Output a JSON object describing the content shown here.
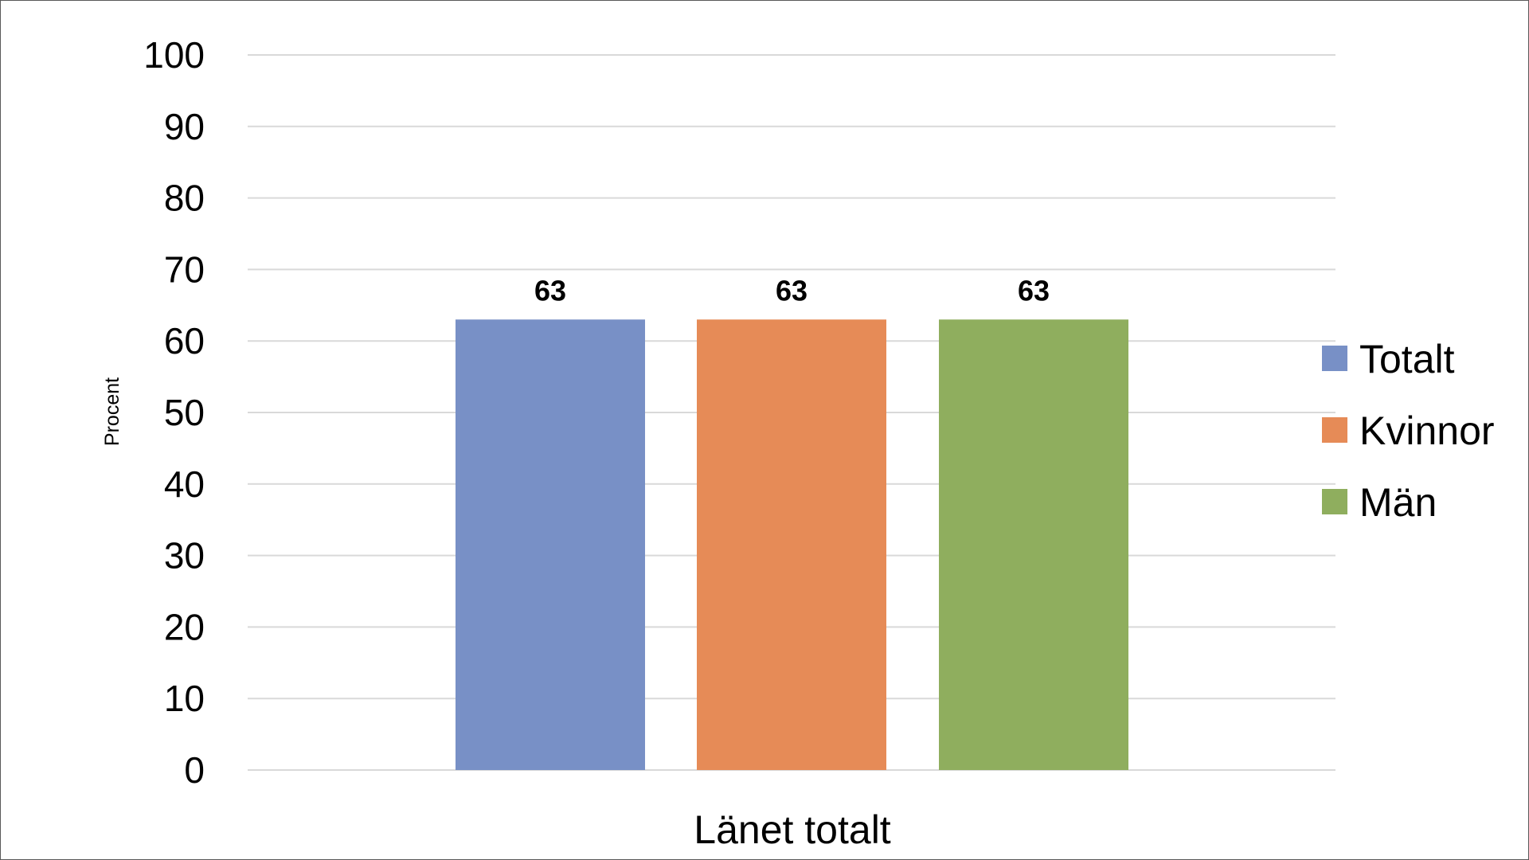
{
  "chart_data": {
    "type": "bar",
    "categories": [
      "Länet totalt"
    ],
    "series": [
      {
        "name": "Totalt",
        "values": [
          63
        ],
        "color": "#7890c6",
        "label": "63"
      },
      {
        "name": "Kvinnor",
        "values": [
          63
        ],
        "color": "#e68b57",
        "label": "63"
      },
      {
        "name": "Män",
        "values": [
          63
        ],
        "color": "#8fae5e",
        "label": "63"
      }
    ],
    "title": "",
    "xlabel": "",
    "ylabel": "Procent",
    "ylim": [
      0,
      100
    ],
    "yticks": [
      0,
      10,
      20,
      30,
      40,
      50,
      60,
      70,
      80,
      90,
      100
    ],
    "grid": true,
    "legend_position": "right"
  }
}
